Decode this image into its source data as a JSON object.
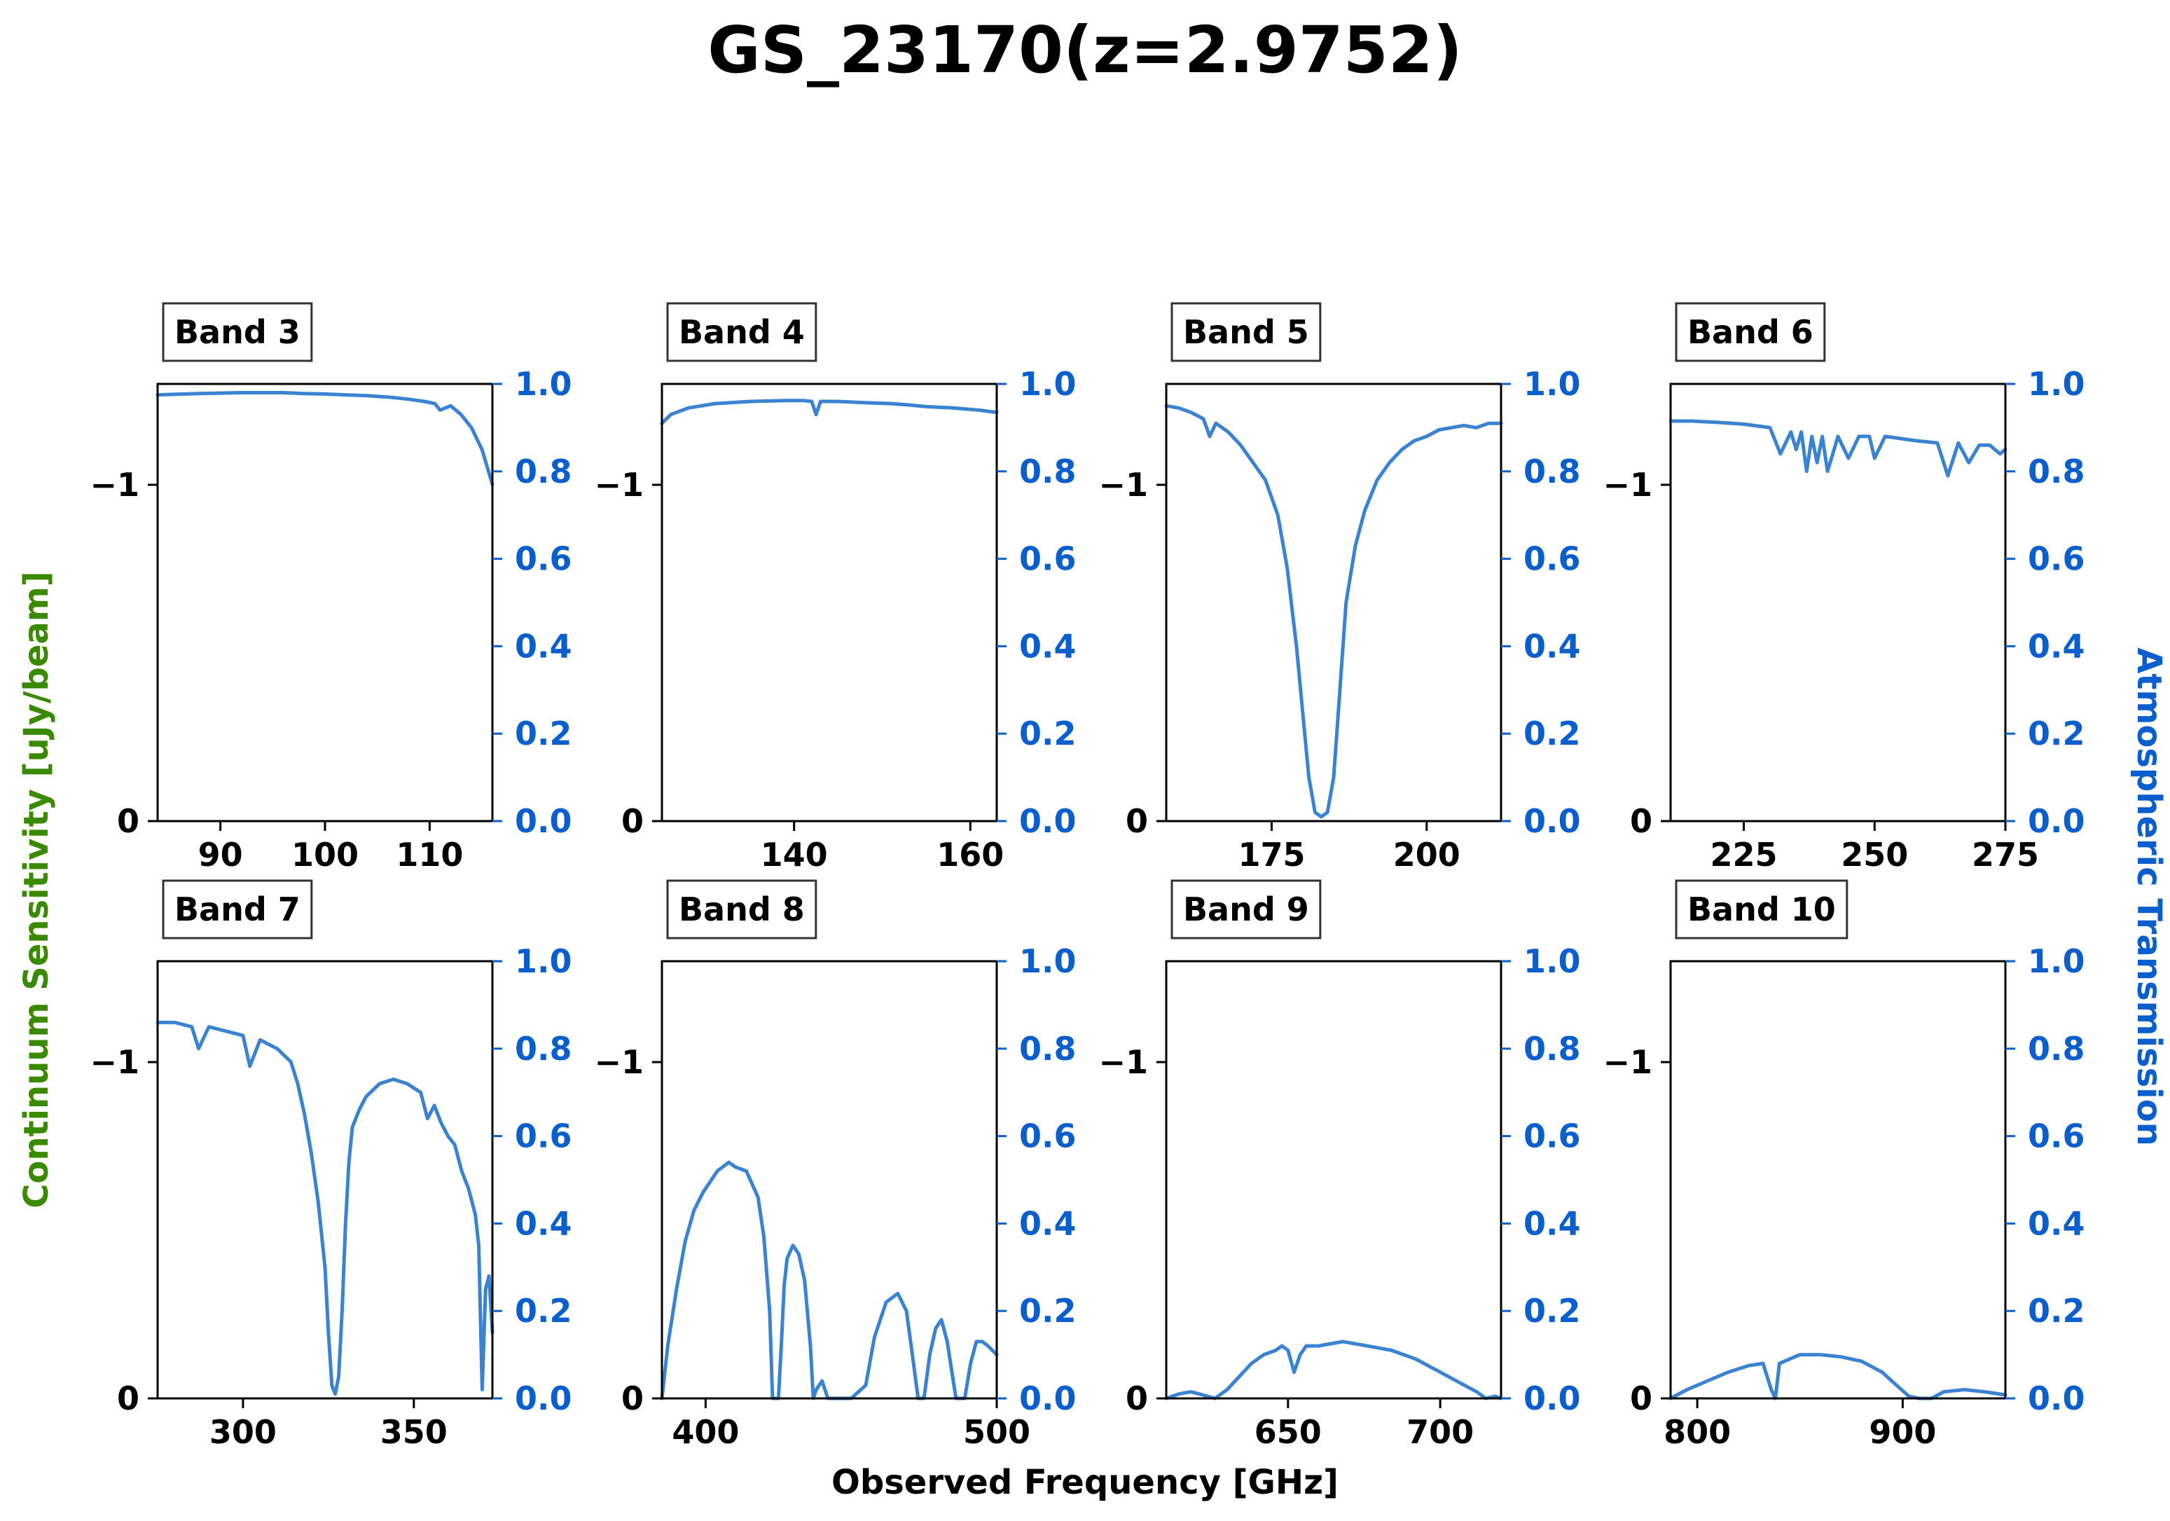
{
  "title": "GS_23170(z=2.9752)",
  "xlabel": "Observed Frequency [GHz]",
  "ylabel_left": "Continuum Sensitivity [uJy/beam]",
  "ylabel_right": "Atmospheric Transmission",
  "colors": {
    "title": "#000000",
    "left_axis_label": "#3a8a00",
    "right_axis": "#0a5fcc",
    "curve": "#3a82d2"
  },
  "chart_data": [
    {
      "type": "line",
      "panel": "Band 3",
      "xlim": [
        84,
        116
      ],
      "xticks": [
        90,
        100,
        110
      ],
      "ylim_left": [
        0,
        -1.3
      ],
      "yticks_left": [
        {
          "value": -1,
          "label": "−1"
        },
        {
          "value": 0,
          "label": "0"
        }
      ],
      "ylim_right": [
        0,
        1.0
      ],
      "yticks_right": [
        "0.0",
        "0.2",
        "0.4",
        "0.6",
        "0.8",
        "1.0"
      ],
      "series": [
        {
          "x": [
            84,
            88,
            92,
            96,
            98,
            100,
            102,
            104,
            106,
            108,
            109.5,
            110.5,
            111,
            112,
            113,
            114,
            115,
            116
          ],
          "y": [
            0.975,
            0.978,
            0.98,
            0.98,
            0.978,
            0.977,
            0.975,
            0.973,
            0.97,
            0.965,
            0.96,
            0.955,
            0.94,
            0.95,
            0.93,
            0.9,
            0.85,
            0.77
          ]
        }
      ]
    },
    {
      "type": "line",
      "panel": "Band 4",
      "xlim": [
        125,
        163
      ],
      "xticks": [
        140,
        160
      ],
      "ylim_left": [
        0,
        -1.3
      ],
      "yticks_left": [
        {
          "value": -1,
          "label": "−1"
        },
        {
          "value": 0,
          "label": "0"
        }
      ],
      "ylim_right": [
        0,
        1.0
      ],
      "yticks_right": [
        "0.0",
        "0.2",
        "0.4",
        "0.6",
        "0.8",
        "1.0"
      ],
      "series": [
        {
          "x": [
            125,
            126,
            128,
            131,
            135,
            139,
            141,
            142,
            142.5,
            143,
            145,
            148,
            151,
            153,
            155,
            158,
            161,
            163
          ],
          "y": [
            0.91,
            0.93,
            0.945,
            0.955,
            0.96,
            0.962,
            0.962,
            0.96,
            0.93,
            0.96,
            0.96,
            0.957,
            0.955,
            0.952,
            0.948,
            0.945,
            0.94,
            0.935
          ]
        }
      ]
    },
    {
      "type": "line",
      "panel": "Band 5",
      "xlim": [
        158,
        212
      ],
      "xticks": [
        175,
        200
      ],
      "ylim_left": [
        0,
        -1.3
      ],
      "yticks_left": [
        {
          "value": -1,
          "label": "−1"
        },
        {
          "value": 0,
          "label": "0"
        }
      ],
      "ylim_right": [
        0,
        1.0
      ],
      "yticks_right": [
        "0.0",
        "0.2",
        "0.4",
        "0.6",
        "0.8",
        "1.0"
      ],
      "series": [
        {
          "x": [
            158,
            160,
            162,
            164,
            165,
            166,
            168,
            170,
            172,
            174,
            176,
            177.5,
            179,
            180,
            181,
            182,
            183,
            184,
            185,
            186,
            187,
            188.5,
            190,
            192,
            194,
            196,
            198,
            200,
            202,
            204,
            206,
            208,
            210,
            212
          ],
          "y": [
            0.95,
            0.945,
            0.935,
            0.92,
            0.88,
            0.91,
            0.89,
            0.86,
            0.82,
            0.78,
            0.7,
            0.58,
            0.4,
            0.25,
            0.1,
            0.02,
            0.01,
            0.02,
            0.1,
            0.3,
            0.5,
            0.63,
            0.71,
            0.78,
            0.82,
            0.85,
            0.87,
            0.88,
            0.895,
            0.9,
            0.905,
            0.9,
            0.91,
            0.91
          ]
        }
      ]
    },
    {
      "type": "line",
      "panel": "Band 6",
      "xlim": [
        211,
        275
      ],
      "xticks": [
        225,
        250,
        275
      ],
      "ylim_left": [
        0,
        -1.3
      ],
      "yticks_left": [
        {
          "value": -1,
          "label": "−1"
        },
        {
          "value": 0,
          "label": "0"
        }
      ],
      "ylim_right": [
        0,
        1.0
      ],
      "yticks_right": [
        "0.0",
        "0.2",
        "0.4",
        "0.6",
        "0.8",
        "1.0"
      ],
      "series": [
        {
          "x": [
            211,
            215,
            220,
            225,
            230,
            232,
            234,
            235,
            236,
            237,
            238,
            239,
            240,
            241,
            243,
            245,
            247,
            249,
            250,
            252,
            255,
            258,
            262,
            264,
            266,
            268,
            270,
            272,
            274,
            275
          ],
          "y": [
            0.915,
            0.915,
            0.912,
            0.908,
            0.9,
            0.84,
            0.89,
            0.85,
            0.89,
            0.8,
            0.88,
            0.82,
            0.88,
            0.8,
            0.88,
            0.83,
            0.88,
            0.88,
            0.83,
            0.88,
            0.875,
            0.87,
            0.865,
            0.79,
            0.865,
            0.82,
            0.86,
            0.86,
            0.84,
            0.85
          ]
        }
      ]
    },
    {
      "type": "line",
      "panel": "Band 7",
      "xlim": [
        275,
        373
      ],
      "xticks": [
        300,
        350
      ],
      "ylim_left": [
        0,
        -1.3
      ],
      "yticks_left": [
        {
          "value": -1,
          "label": "−1"
        },
        {
          "value": 0,
          "label": "0"
        }
      ],
      "ylim_right": [
        0,
        1.0
      ],
      "yticks_right": [
        "0.0",
        "0.2",
        "0.4",
        "0.6",
        "0.8",
        "1.0"
      ],
      "series": [
        {
          "x": [
            275,
            280,
            285,
            287,
            290,
            295,
            300,
            302,
            305,
            310,
            314,
            316,
            318,
            320,
            322,
            324,
            325,
            326,
            327,
            328,
            329,
            330,
            331,
            332,
            334,
            336,
            340,
            344,
            348,
            350,
            352,
            354,
            356,
            358,
            360,
            362,
            364,
            366,
            368,
            369,
            370,
            371,
            372,
            373
          ],
          "y": [
            0.86,
            0.86,
            0.85,
            0.8,
            0.85,
            0.84,
            0.83,
            0.76,
            0.82,
            0.8,
            0.77,
            0.72,
            0.65,
            0.56,
            0.45,
            0.3,
            0.15,
            0.03,
            0.01,
            0.05,
            0.2,
            0.4,
            0.54,
            0.62,
            0.66,
            0.69,
            0.72,
            0.73,
            0.72,
            0.71,
            0.7,
            0.64,
            0.67,
            0.63,
            0.6,
            0.58,
            0.52,
            0.48,
            0.42,
            0.35,
            0.02,
            0.25,
            0.28,
            0.15
          ]
        }
      ]
    },
    {
      "type": "line",
      "panel": "Band 8",
      "xlim": [
        385,
        500
      ],
      "xticks": [
        400,
        500
      ],
      "ylim_left": [
        0,
        -1.3
      ],
      "yticks_left": [
        {
          "value": -1,
          "label": "−1"
        },
        {
          "value": 0,
          "label": "0"
        }
      ],
      "ylim_right": [
        0,
        1.0
      ],
      "yticks_right": [
        "0.0",
        "0.2",
        "0.4",
        "0.6",
        "0.8",
        "1.0"
      ],
      "series": [
        {
          "x": [
            385,
            387,
            390,
            393,
            396,
            399,
            402,
            404,
            406,
            408,
            410,
            414,
            418,
            420,
            422,
            423,
            424,
            425,
            426,
            427,
            428,
            430,
            432,
            434,
            436,
            437,
            438,
            440,
            442,
            444,
            447,
            450,
            455,
            458,
            462,
            466,
            469,
            471,
            473,
            475,
            477,
            479,
            481,
            483,
            486,
            489,
            491,
            493,
            495,
            497,
            500
          ],
          "y": [
            0.0,
            0.12,
            0.25,
            0.36,
            0.43,
            0.47,
            0.5,
            0.52,
            0.53,
            0.54,
            0.53,
            0.52,
            0.46,
            0.37,
            0.2,
            0.0,
            0.0,
            0.0,
            0.12,
            0.26,
            0.32,
            0.35,
            0.33,
            0.27,
            0.12,
            0.0,
            0.02,
            0.04,
            0.0,
            0.0,
            0.0,
            0.0,
            0.03,
            0.14,
            0.22,
            0.24,
            0.2,
            0.1,
            0.0,
            0.0,
            0.1,
            0.16,
            0.18,
            0.13,
            0.0,
            0.0,
            0.08,
            0.13,
            0.13,
            0.12,
            0.1
          ]
        }
      ]
    },
    {
      "type": "line",
      "panel": "Band 9",
      "xlim": [
        610,
        720
      ],
      "xticks": [
        650,
        700
      ],
      "ylim_left": [
        0,
        -1.3
      ],
      "yticks_left": [
        {
          "value": -1,
          "label": "−1"
        },
        {
          "value": 0,
          "label": "0"
        }
      ],
      "ylim_right": [
        0,
        1.0
      ],
      "yticks_right": [
        "0.0",
        "0.2",
        "0.4",
        "0.6",
        "0.8",
        "1.0"
      ],
      "series": [
        {
          "x": [
            610,
            614,
            618,
            622,
            626,
            630,
            634,
            638,
            642,
            646,
            648,
            650,
            652,
            654,
            656,
            660,
            664,
            668,
            672,
            676,
            680,
            684,
            688,
            692,
            696,
            700,
            704,
            708,
            712,
            715,
            718,
            720
          ],
          "y": [
            0.0,
            0.01,
            0.015,
            0.008,
            0.0,
            0.02,
            0.05,
            0.08,
            0.1,
            0.11,
            0.12,
            0.11,
            0.06,
            0.1,
            0.12,
            0.12,
            0.125,
            0.13,
            0.125,
            0.12,
            0.115,
            0.11,
            0.1,
            0.09,
            0.075,
            0.06,
            0.045,
            0.03,
            0.015,
            0.0,
            0.005,
            0.0
          ]
        }
      ]
    },
    {
      "type": "line",
      "panel": "Band 10",
      "xlim": [
        787,
        950
      ],
      "xticks": [
        800,
        900
      ],
      "ylim_left": [
        0,
        -1.3
      ],
      "yticks_left": [
        {
          "value": -1,
          "label": "−1"
        },
        {
          "value": 0,
          "label": "0"
        }
      ],
      "ylim_right": [
        0,
        1.0
      ],
      "yticks_right": [
        "0.0",
        "0.2",
        "0.4",
        "0.6",
        "0.8",
        "1.0"
      ],
      "series": [
        {
          "x": [
            787,
            795,
            805,
            815,
            825,
            832,
            836,
            838,
            840,
            845,
            850,
            860,
            870,
            880,
            890,
            897,
            903,
            908,
            914,
            920,
            930,
            940,
            950
          ],
          "y": [
            0.0,
            0.02,
            0.04,
            0.06,
            0.075,
            0.08,
            0.02,
            0.0,
            0.08,
            0.09,
            0.1,
            0.1,
            0.095,
            0.085,
            0.06,
            0.03,
            0.005,
            0.0,
            0.0,
            0.015,
            0.02,
            0.015,
            0.008
          ]
        }
      ]
    }
  ]
}
